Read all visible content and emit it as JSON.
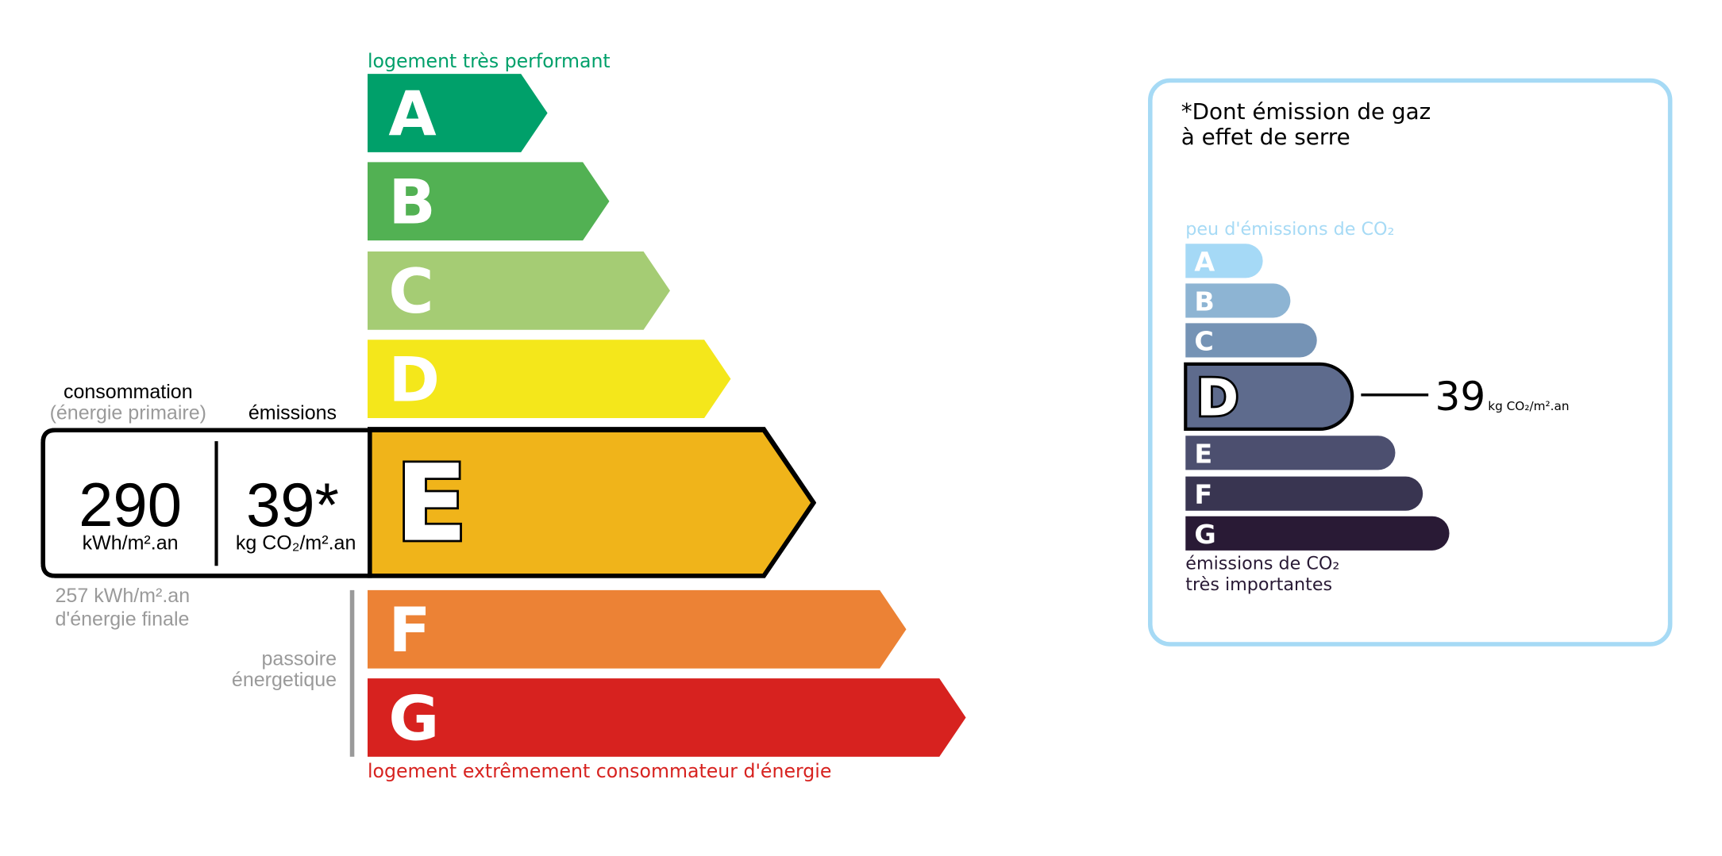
{
  "energy": {
    "top_label": "logement très performant",
    "bottom_label": "logement extrêmement consommateur d'énergie",
    "classes": [
      {
        "letter": "A",
        "color": "#00a06a"
      },
      {
        "letter": "B",
        "color": "#52b153"
      },
      {
        "letter": "C",
        "color": "#a5cc74"
      },
      {
        "letter": "D",
        "color": "#f4e71b"
      },
      {
        "letter": "E",
        "color": "#f0b41a"
      },
      {
        "letter": "F",
        "color": "#ec8235"
      },
      {
        "letter": "G",
        "color": "#d7221f"
      }
    ],
    "current_class": "E",
    "consumption_label": "consommation",
    "consumption_sublabel": "(énergie primaire)",
    "emissions_label": "émissions",
    "consumption_value": "290",
    "consumption_unit": "kWh/m².an",
    "emissions_value": "39*",
    "emissions_unit": "kg CO₂/m².an",
    "final_energy_line1": "257 kWh/m².an",
    "final_energy_line2": "d'énergie finale",
    "passoire_line1": "passoire",
    "passoire_line2": "énergetique"
  },
  "ges": {
    "title_line1": "*Dont émission de gaz",
    "title_line2": "à effet de serre",
    "top_label": "peu d'émissions de CO₂",
    "bottom_line1": "émissions de CO₂",
    "bottom_line2": "très importantes",
    "classes": [
      {
        "letter": "A",
        "color": "#a5d9f6"
      },
      {
        "letter": "B",
        "color": "#8db4d3"
      },
      {
        "letter": "C",
        "color": "#7593b5"
      },
      {
        "letter": "D",
        "color": "#5e6b8d"
      },
      {
        "letter": "E",
        "color": "#4c4f6f"
      },
      {
        "letter": "F",
        "color": "#393551"
      },
      {
        "letter": "G",
        "color": "#291a35"
      }
    ],
    "current_class": "D",
    "value": "39",
    "unit": "kg CO₂/m².an",
    "border_color": "#a6daf5"
  }
}
